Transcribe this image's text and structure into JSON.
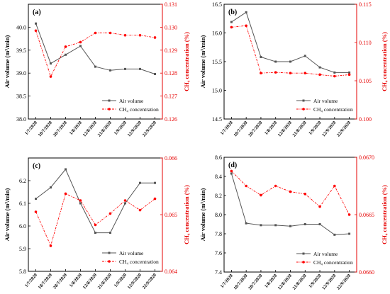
{
  "chart_data": [
    {
      "type": "line",
      "panel_label": "(a)",
      "categories": [
        "1/7/2020",
        "10/7/2020",
        "20/7/2020",
        "1/8/2020",
        "12/8/2020",
        "21/8/2020",
        "1/9/2020",
        "12/9/2020",
        "22/9/2020"
      ],
      "ylabel": "Air volume (m³/min)",
      "ylim": [
        38.0,
        40.5
      ],
      "yticks": [
        "38.0",
        "38.5",
        "39.0",
        "39.5",
        "40.0"
      ],
      "y2label": "CH₄ concentration (%)",
      "y2lim": [
        0.126,
        0.131
      ],
      "y2ticks": [
        "0.126",
        "0.127",
        "0.128",
        "0.129",
        "0.130",
        "0.131"
      ],
      "legend_position": "bottom-right",
      "series": [
        {
          "name": "Air volume",
          "axis": "left",
          "color": "#555555",
          "values": [
            40.08,
            39.21,
            39.4,
            39.59,
            39.14,
            39.06,
            39.09,
            39.09,
            38.98
          ]
        },
        {
          "name": "CH₄ concentration",
          "axis": "right",
          "color": "#ff0000",
          "values": [
            0.12985,
            0.12785,
            0.12915,
            0.12935,
            0.12975,
            0.12975,
            0.12965,
            0.12965,
            0.12955
          ]
        }
      ]
    },
    {
      "type": "line",
      "panel_label": "(b)",
      "categories": [
        "1/7/2020",
        "10/7/2020",
        "20/7/2020",
        "1/8/2020",
        "12/8/2020",
        "21/8/2020",
        "1/9/2020",
        "12/9/2020",
        "22/9/2020"
      ],
      "ylabel": "Air volume (m³/min)",
      "ylim": [
        14.5,
        16.5
      ],
      "yticks": [
        "14.5",
        "15.0",
        "15.5",
        "16.0",
        "16.5"
      ],
      "y2label": "CH₄ concentration (%)",
      "y2lim": [
        0.1,
        0.115
      ],
      "y2ticks": [
        "0.100",
        "0.105",
        "0.110",
        "0.115"
      ],
      "legend_position": "bottom-right",
      "series": [
        {
          "name": "Air volume",
          "axis": "left",
          "color": "#555555",
          "values": [
            16.19,
            16.36,
            15.58,
            15.5,
            15.5,
            15.6,
            15.4,
            15.31,
            15.31
          ]
        },
        {
          "name": "CH₄ concentration",
          "axis": "right",
          "color": "#ff0000",
          "values": [
            0.112,
            0.1122,
            0.106,
            0.1061,
            0.106,
            0.106,
            0.1058,
            0.1056,
            0.1058
          ]
        }
      ]
    },
    {
      "type": "line",
      "panel_label": "(c)",
      "categories": [
        "1/7/2020",
        "10/7/2020",
        "20/7/2020",
        "1/8/2020",
        "12/8/2020",
        "21/8/2020",
        "1/9/2020",
        "12/9/2020",
        "22/9/2020"
      ],
      "ylabel": "Air volume (m³/min)",
      "ylim": [
        5.8,
        6.3
      ],
      "yticks": [
        "5.8",
        "5.9",
        "6.0",
        "6.1",
        "6.2"
      ],
      "y2label": "CH₄ concentration (%)",
      "y2lim": [
        0.064,
        0.066
      ],
      "y2ticks": [
        "0.064",
        "0.065",
        "0.066"
      ],
      "legend_position": "bottom-right",
      "series": [
        {
          "name": "Air volume",
          "axis": "left",
          "color": "#555555",
          "values": [
            6.12,
            6.17,
            6.25,
            6.1,
            5.97,
            5.97,
            6.1,
            6.19,
            6.19
          ]
        },
        {
          "name": "CH₄ concentration",
          "axis": "right",
          "color": "#ff0000",
          "values": [
            0.06505,
            0.06445,
            0.06537,
            0.06525,
            0.06482,
            0.06502,
            0.06525,
            0.06508,
            0.06528
          ]
        }
      ]
    },
    {
      "type": "line",
      "panel_label": "(d)",
      "categories": [
        "1/7/2020",
        "10/7/2020",
        "20/7/2020",
        "1/8/2020",
        "12/8/2020",
        "21/8/2020",
        "1/9/2020",
        "12/9/2020",
        "22/9/2020"
      ],
      "ylabel": "Air volume (m³/min)",
      "ylim": [
        7.4,
        8.6
      ],
      "yticks": [
        "7.4",
        "7.6",
        "7.8",
        "8.0",
        "8.2",
        "8.4",
        "8.6"
      ],
      "y2label": "CH₄ concentration (%)",
      "y2lim": [
        0.066,
        0.067
      ],
      "y2ticks": [
        "0.0660",
        "0.0665",
        "0.0670"
      ],
      "legend_position": "bottom-right",
      "series": [
        {
          "name": "Air volume",
          "axis": "left",
          "color": "#555555",
          "values": [
            8.43,
            7.91,
            7.89,
            7.89,
            7.88,
            7.9,
            7.9,
            7.79,
            7.8
          ]
        },
        {
          "name": "CH₄ concentration",
          "axis": "right",
          "color": "#ff0000",
          "values": [
            0.06688,
            0.06675,
            0.06667,
            0.06675,
            0.0667,
            0.06668,
            0.06657,
            0.06675,
            0.0665
          ]
        }
      ]
    }
  ]
}
